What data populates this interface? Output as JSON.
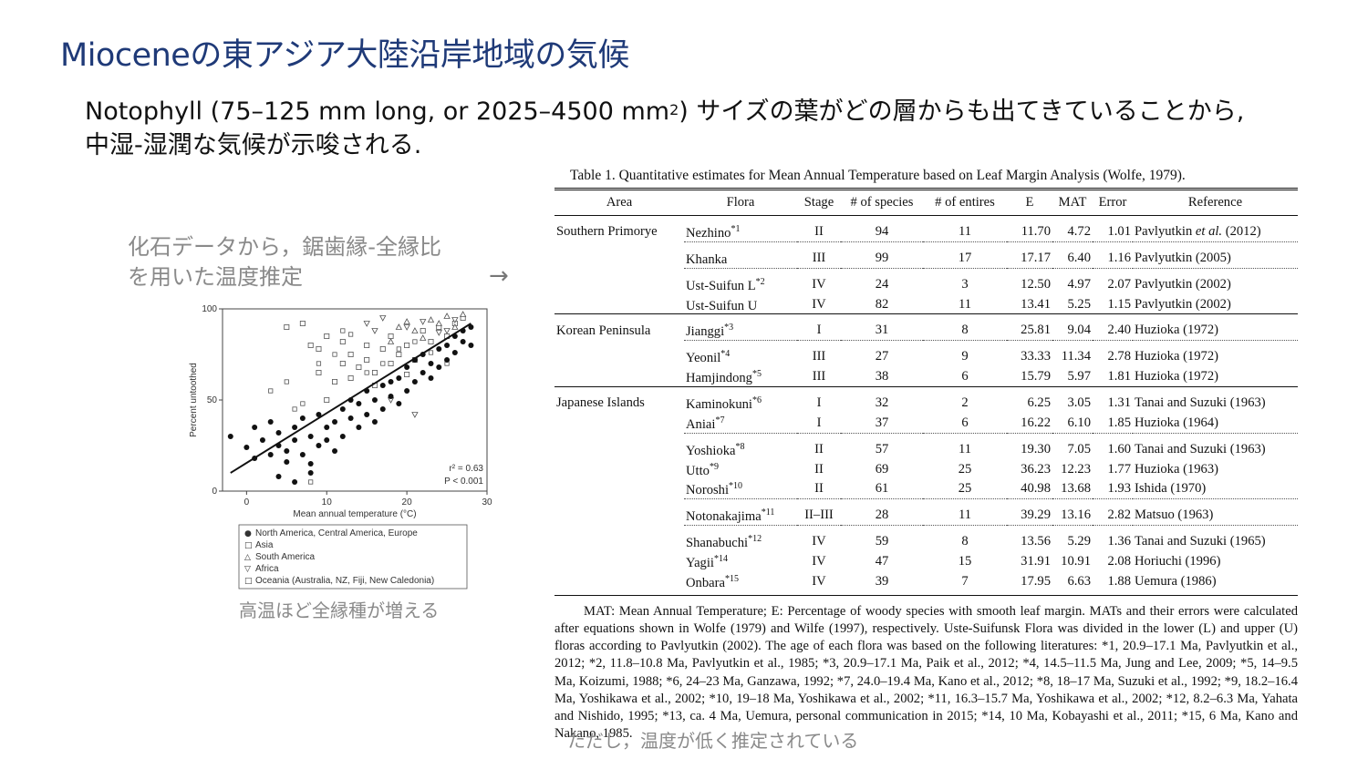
{
  "slide": {
    "title": "Mioceneの東アジア大陸沿岸地域の気候",
    "subtitle_line1_pre": "Notophyll (75–125 mm long, or 2025–4500 mm",
    "subtitle_sup": "2",
    "subtitle_line1_post": ") サイズの葉がどの層からも出てきていることから,",
    "subtitle_line2": "中湿-湿潤な気候が示唆される.",
    "callout_line1": "化石データから，鋸歯縁-全縁比",
    "callout_line2": "を用いた温度推定",
    "arrow": "→",
    "note_left": "高温ほど全縁種が増える",
    "note_bottom": "ただし，温度が低く推定されている"
  },
  "chart_data": {
    "type": "scatter",
    "xlabel": "Mean annual temperature (°C)",
    "ylabel": "Percent untoothed",
    "xlim": [
      -3,
      30
    ],
    "ylim": [
      0,
      100
    ],
    "xticks": [
      "0",
      "10",
      "20",
      "30"
    ],
    "yticks": [
      "0",
      "50",
      "100"
    ],
    "annotation_r2": "r² = 0.63",
    "annotation_p": "P < 0.001",
    "trend_line": {
      "x": [
        -2,
        28
      ],
      "y": [
        10,
        92
      ]
    },
    "legend": [
      {
        "marker": "●",
        "label": "North America, Central America, Europe"
      },
      {
        "marker": "□",
        "label": "Asia"
      },
      {
        "marker": "△",
        "label": "South America"
      },
      {
        "marker": "▽",
        "label": "Africa"
      },
      {
        "marker": "□",
        "label": "Oceania (Australia, NZ, Fiji, New Caledonia)"
      }
    ],
    "series": [
      {
        "name": "North America, Central America, Europe",
        "marker": "filled-circle",
        "points": [
          [
            -2,
            30
          ],
          [
            0,
            24
          ],
          [
            1,
            35
          ],
          [
            1,
            18
          ],
          [
            2,
            28
          ],
          [
            3,
            20
          ],
          [
            3,
            38
          ],
          [
            4,
            25
          ],
          [
            4,
            32
          ],
          [
            5,
            22
          ],
          [
            5,
            16
          ],
          [
            6,
            28
          ],
          [
            6,
            35
          ],
          [
            7,
            20
          ],
          [
            7,
            40
          ],
          [
            8,
            15
          ],
          [
            8,
            30
          ],
          [
            9,
            25
          ],
          [
            9,
            42
          ],
          [
            10,
            35
          ],
          [
            10,
            28
          ],
          [
            11,
            38
          ],
          [
            11,
            22
          ],
          [
            12,
            45
          ],
          [
            12,
            30
          ],
          [
            13,
            40
          ],
          [
            13,
            50
          ],
          [
            14,
            35
          ],
          [
            14,
            48
          ],
          [
            15,
            42
          ],
          [
            15,
            55
          ],
          [
            16,
            50
          ],
          [
            16,
            38
          ],
          [
            17,
            58
          ],
          [
            17,
            45
          ],
          [
            18,
            60
          ],
          [
            18,
            52
          ],
          [
            19,
            48
          ],
          [
            19,
            62
          ],
          [
            20,
            55
          ],
          [
            20,
            68
          ],
          [
            21,
            60
          ],
          [
            21,
            72
          ],
          [
            22,
            65
          ],
          [
            22,
            75
          ],
          [
            23,
            70
          ],
          [
            23,
            62
          ],
          [
            24,
            78
          ],
          [
            24,
            68
          ],
          [
            25,
            80
          ],
          [
            25,
            72
          ],
          [
            26,
            85
          ],
          [
            26,
            76
          ],
          [
            27,
            82
          ],
          [
            27,
            88
          ],
          [
            28,
            80
          ],
          [
            28,
            90
          ],
          [
            6,
            5
          ],
          [
            8,
            10
          ],
          [
            4,
            8
          ]
        ]
      },
      {
        "name": "Asia",
        "marker": "open-square",
        "points": [
          [
            5,
            90
          ],
          [
            7,
            92
          ],
          [
            8,
            80
          ],
          [
            9,
            78
          ],
          [
            10,
            85
          ],
          [
            12,
            70
          ],
          [
            12,
            82
          ],
          [
            13,
            75
          ],
          [
            14,
            68
          ],
          [
            15,
            72
          ],
          [
            15,
            80
          ],
          [
            16,
            65
          ],
          [
            17,
            78
          ],
          [
            18,
            70
          ],
          [
            18,
            85
          ],
          [
            19,
            75
          ],
          [
            20,
            80
          ],
          [
            21,
            72
          ],
          [
            22,
            88
          ],
          [
            23,
            82
          ],
          [
            24,
            90
          ],
          [
            25,
            85
          ],
          [
            26,
            92
          ],
          [
            27,
            95
          ],
          [
            11,
            60
          ],
          [
            10,
            50
          ],
          [
            13,
            62
          ],
          [
            16,
            58
          ],
          [
            20,
            64
          ],
          [
            9,
            65
          ]
        ]
      },
      {
        "name": "South America",
        "marker": "open-triangle",
        "points": [
          [
            19,
            90
          ],
          [
            21,
            88
          ],
          [
            23,
            94
          ],
          [
            24,
            92
          ],
          [
            25,
            96
          ],
          [
            26,
            90
          ],
          [
            27,
            97
          ],
          [
            22,
            84
          ],
          [
            18,
            82
          ],
          [
            20,
            93
          ]
        ]
      },
      {
        "name": "Africa",
        "marker": "open-down-triangle",
        "points": [
          [
            15,
            92
          ],
          [
            17,
            95
          ],
          [
            20,
            90
          ],
          [
            22,
            93
          ],
          [
            24,
            87
          ],
          [
            26,
            94
          ],
          [
            18,
            50
          ],
          [
            21,
            42
          ],
          [
            25,
            88
          ],
          [
            16,
            88
          ]
        ]
      },
      {
        "name": "Oceania (Australia, NZ, Fiji, New Caledonia)",
        "marker": "open-square-small",
        "points": [
          [
            3,
            55
          ],
          [
            5,
            60
          ],
          [
            7,
            48
          ],
          [
            9,
            70
          ],
          [
            11,
            75
          ],
          [
            13,
            86
          ],
          [
            15,
            65
          ],
          [
            17,
            70
          ],
          [
            19,
            78
          ],
          [
            21,
            82
          ],
          [
            23,
            76
          ],
          [
            25,
            70
          ],
          [
            8,
            5
          ],
          [
            12,
            88
          ],
          [
            6,
            45
          ]
        ]
      }
    ]
  },
  "table": {
    "caption": "Table 1.    Quantitative estimates for Mean Annual Temperature based on Leaf Margin Analysis (Wolfe, 1979).",
    "headers": [
      "Area",
      "Flora",
      "Stage",
      "# of species",
      "# of entires",
      "E",
      "MAT",
      "Error",
      "Reference"
    ],
    "rows": [
      {
        "sep": "first",
        "area": "Southern Primorye",
        "flora": "Nezhino",
        "note": "*1",
        "stage": "II",
        "species": "94",
        "entires": "11",
        "e": "11.70",
        "mat": "4.72",
        "error": "1.01",
        "ref_pre": "Pavlyutkin ",
        "ref_it": "et al.",
        "ref_post": " (2012)"
      },
      {
        "sep": "dot",
        "area": "",
        "flora": "Khanka",
        "note": "",
        "stage": "III",
        "species": "99",
        "entires": "17",
        "e": "17.17",
        "mat": "6.40",
        "error": "1.16",
        "ref_pre": "Pavlyutkin (2005)",
        "ref_it": "",
        "ref_post": ""
      },
      {
        "sep": "dot",
        "area": "",
        "flora": "Ust-Suifun L",
        "note": "*2",
        "stage": "IV",
        "species": "24",
        "entires": "3",
        "e": "12.50",
        "mat": "4.97",
        "error": "2.07",
        "ref_pre": "Pavlyutkin (2002)",
        "ref_it": "",
        "ref_post": ""
      },
      {
        "sep": "",
        "area": "",
        "flora": "Ust-Suifun U",
        "note": "",
        "stage": "IV",
        "species": "82",
        "entires": "11",
        "e": "13.41",
        "mat": "5.25",
        "error": "1.15",
        "ref_pre": "Pavlyutkin (2002)",
        "ref_it": "",
        "ref_post": ""
      },
      {
        "sep": "solid",
        "area": "Korean Peninsula",
        "flora": "Jianggi",
        "note": "*3",
        "stage": "I",
        "species": "31",
        "entires": "8",
        "e": "25.81",
        "mat": "9.04",
        "error": "2.40",
        "ref_pre": "Huzioka (1972)",
        "ref_it": "",
        "ref_post": ""
      },
      {
        "sep": "dot",
        "area": "",
        "flora": "Yeonil",
        "note": "*4",
        "stage": "III",
        "species": "27",
        "entires": "9",
        "e": "33.33",
        "mat": "11.34",
        "error": "2.78",
        "ref_pre": "Huzioka (1972)",
        "ref_it": "",
        "ref_post": ""
      },
      {
        "sep": "",
        "area": "",
        "flora": "Hamjindong",
        "note": "*5",
        "stage": "III",
        "species": "38",
        "entires": "6",
        "e": "15.79",
        "mat": "5.97",
        "error": "1.81",
        "ref_pre": "Huzioka (1972)",
        "ref_it": "",
        "ref_post": ""
      },
      {
        "sep": "solid",
        "area": "Japanese Islands",
        "flora": "Kaminokuni",
        "note": "*6",
        "stage": "I",
        "species": "32",
        "entires": "2",
        "e": "6.25",
        "mat": "3.05",
        "error": "1.31",
        "ref_pre": "Tanai and Suzuki (1963)",
        "ref_it": "",
        "ref_post": ""
      },
      {
        "sep": "",
        "area": "",
        "flora": "Aniai",
        "note": "*7",
        "stage": "I",
        "species": "37",
        "entires": "6",
        "e": "16.22",
        "mat": "6.10",
        "error": "1.85",
        "ref_pre": "Huzioka (1964)",
        "ref_it": "",
        "ref_post": ""
      },
      {
        "sep": "dot",
        "area": "",
        "flora": "Yoshioka",
        "note": "*8",
        "stage": "II",
        "species": "57",
        "entires": "11",
        "e": "19.30",
        "mat": "7.05",
        "error": "1.60",
        "ref_pre": "Tanai and Suzuki (1963)",
        "ref_it": "",
        "ref_post": ""
      },
      {
        "sep": "",
        "area": "",
        "flora": "Utto",
        "note": "*9",
        "stage": "II",
        "species": "69",
        "entires": "25",
        "e": "36.23",
        "mat": "12.23",
        "error": "1.77",
        "ref_pre": "Huzioka (1963)",
        "ref_it": "",
        "ref_post": ""
      },
      {
        "sep": "",
        "area": "",
        "flora": "Noroshi",
        "note": "*10",
        "stage": "II",
        "species": "61",
        "entires": "25",
        "e": "40.98",
        "mat": "13.68",
        "error": "1.93",
        "ref_pre": "Ishida (1970)",
        "ref_it": "",
        "ref_post": ""
      },
      {
        "sep": "dot",
        "area": "",
        "flora": "Notonakajima",
        "note": "*11",
        "stage": "II–III",
        "species": "28",
        "entires": "11",
        "e": "39.29",
        "mat": "13.16",
        "error": "2.82",
        "ref_pre": "Matsuo (1963)",
        "ref_it": "",
        "ref_post": ""
      },
      {
        "sep": "dot",
        "area": "",
        "flora": "Shanabuchi",
        "note": "*12",
        "stage": "IV",
        "species": "59",
        "entires": "8",
        "e": "13.56",
        "mat": "5.29",
        "error": "1.36",
        "ref_pre": "Tanai and Suzuki (1965)",
        "ref_it": "",
        "ref_post": ""
      },
      {
        "sep": "",
        "area": "",
        "flora": "Yagii",
        "note": "*14",
        "stage": "IV",
        "species": "47",
        "entires": "15",
        "e": "31.91",
        "mat": "10.91",
        "error": "2.08",
        "ref_pre": "Horiuchi (1996)",
        "ref_it": "",
        "ref_post": ""
      },
      {
        "sep": "",
        "area": "",
        "flora": "Onbara",
        "note": "*15",
        "stage": "IV",
        "species": "39",
        "entires": "7",
        "e": "17.95",
        "mat": "6.63",
        "error": "1.88",
        "ref_pre": "Uemura (1986)",
        "ref_it": "",
        "ref_post": ""
      }
    ],
    "notes": "MAT: Mean Annual Temperature; E: Percentage of woody species with smooth leaf margin. MATs and their errors were calculated after equations shown in Wolfe (1979) and Wilfe (1997), respectively. Uste-Suifunsk Flora was divided in the lower (L) and upper (U) floras according to Pavlyutkin (2002). The age of each flora was based on the following literatures: *1, 20.9–17.1 Ma, Pavlyutkin et al., 2012; *2, 11.8–10.8 Ma, Pavlyutkin et al., 1985; *3, 20.9–17.1 Ma, Paik et al., 2012; *4, 14.5–11.5 Ma, Jung and Lee, 2009; *5, 14–9.5 Ma, Koizumi, 1988; *6, 24–23 Ma, Ganzawa, 1992; *7, 24.0–19.4 Ma, Kano et al., 2012; *8, 18–17 Ma, Suzuki et al., 1992; *9, 18.2–16.4 Ma, Yoshikawa et al., 2002; *10, 19–18 Ma, Yoshikawa et al., 2002; *11, 16.3–15.7 Ma, Yoshikawa et al., 2002; *12, 8.2–6.3 Ma, Yahata and Nishido, 1995; *13, ca. 4 Ma, Uemura, personal communication in 2015; *14, 10 Ma, Kobayashi et al., 2011; *15, 6 Ma, Kano and Nakano, 1985."
  }
}
